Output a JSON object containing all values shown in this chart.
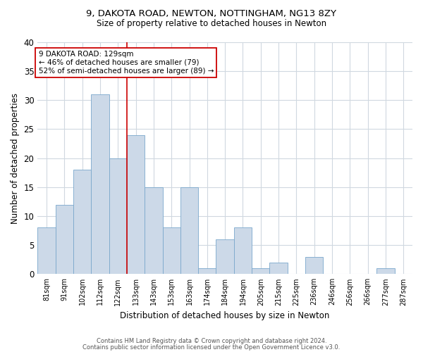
{
  "title1": "9, DAKOTA ROAD, NEWTON, NOTTINGHAM, NG13 8ZY",
  "title2": "Size of property relative to detached houses in Newton",
  "xlabel": "Distribution of detached houses by size in Newton",
  "ylabel": "Number of detached properties",
  "categories": [
    "81sqm",
    "91sqm",
    "102sqm",
    "112sqm",
    "122sqm",
    "133sqm",
    "143sqm",
    "153sqm",
    "163sqm",
    "174sqm",
    "184sqm",
    "194sqm",
    "205sqm",
    "215sqm",
    "225sqm",
    "236sqm",
    "246sqm",
    "256sqm",
    "266sqm",
    "277sqm",
    "287sqm"
  ],
  "values": [
    8,
    12,
    18,
    31,
    20,
    24,
    15,
    8,
    15,
    1,
    6,
    8,
    1,
    2,
    0,
    3,
    0,
    0,
    0,
    1,
    0
  ],
  "bar_color": "#ccd9e8",
  "bar_edge_color": "#7aa8cc",
  "vline_x": 4.5,
  "vline_color": "#cc0000",
  "annotation_text": "9 DAKOTA ROAD: 129sqm\n← 46% of detached houses are smaller (79)\n52% of semi-detached houses are larger (89) →",
  "annotation_box_color": "#ffffff",
  "annotation_box_edge": "#cc0000",
  "ylim": [
    0,
    40
  ],
  "yticks": [
    0,
    5,
    10,
    15,
    20,
    25,
    30,
    35,
    40
  ],
  "footer1": "Contains HM Land Registry data © Crown copyright and database right 2024.",
  "footer2": "Contains public sector information licensed under the Open Government Licence v3.0.",
  "bg_color": "#ffffff",
  "plot_bg_color": "#ffffff",
  "grid_color": "#d0d8e0"
}
